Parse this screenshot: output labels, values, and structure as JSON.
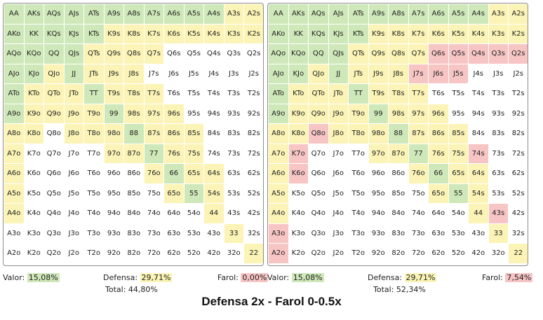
{
  "colors": {
    "valor": "#cfe8b9",
    "defensa": "#fbf4b6",
    "farol": "#f8c5c5",
    "none": "#ffffff"
  },
  "rows": [
    [
      "AA",
      "AKs",
      "AQs",
      "AJs",
      "ATs",
      "A9s",
      "A8s",
      "A7s",
      "A6s",
      "A5s",
      "A4s",
      "A3s",
      "A2s"
    ],
    [
      "AKo",
      "KK",
      "KQs",
      "KJs",
      "KTs",
      "K9s",
      "K8s",
      "K7s",
      "K6s",
      "K5s",
      "K4s",
      "K3s",
      "K2s"
    ],
    [
      "AQo",
      "KQo",
      "QQ",
      "QJs",
      "QTs",
      "Q9s",
      "Q8s",
      "Q7s",
      "Q6s",
      "Q5s",
      "Q4s",
      "Q3s",
      "Q2s"
    ],
    [
      "AJo",
      "KJo",
      "QJo",
      "JJ",
      "JTs",
      "J9s",
      "J8s",
      "J7s",
      "J6s",
      "J5s",
      "J4s",
      "J3s",
      "J2s"
    ],
    [
      "ATo",
      "KTo",
      "QTo",
      "JTo",
      "TT",
      "T9s",
      "T8s",
      "T7s",
      "T6s",
      "T5s",
      "T4s",
      "T3s",
      "T2s"
    ],
    [
      "A9o",
      "K9o",
      "Q9o",
      "J9o",
      "T9o",
      "99",
      "98s",
      "97s",
      "96s",
      "95s",
      "94s",
      "93s",
      "92s"
    ],
    [
      "A8o",
      "K8o",
      "Q8o",
      "J8o",
      "T8o",
      "98o",
      "88",
      "87s",
      "86s",
      "85s",
      "84s",
      "83s",
      "82s"
    ],
    [
      "A7o",
      "K7o",
      "Q7o",
      "J7o",
      "T7o",
      "97o",
      "87o",
      "77",
      "76s",
      "75s",
      "74s",
      "73s",
      "72s"
    ],
    [
      "A6o",
      "K6o",
      "Q6o",
      "J6o",
      "T6o",
      "96o",
      "86o",
      "76o",
      "66",
      "65s",
      "64s",
      "63s",
      "62s"
    ],
    [
      "A5o",
      "K5o",
      "Q5o",
      "J5o",
      "T5o",
      "95o",
      "85o",
      "75o",
      "65o",
      "55",
      "54s",
      "53s",
      "52s"
    ],
    [
      "A4o",
      "K4o",
      "Q4o",
      "J4o",
      "T4o",
      "94o",
      "84o",
      "74o",
      "64o",
      "54o",
      "44",
      "43s",
      "42s"
    ],
    [
      "A3o",
      "K3o",
      "Q3o",
      "J3o",
      "T3o",
      "93o",
      "83o",
      "73o",
      "63o",
      "53o",
      "43o",
      "33",
      "32s"
    ],
    [
      "A2o",
      "K2o",
      "Q2o",
      "J2o",
      "T2o",
      "92o",
      "82o",
      "72o",
      "62o",
      "52o",
      "42o",
      "32o",
      "22"
    ]
  ],
  "panels": [
    {
      "colors": [
        "VVVVVVVVVVVDD",
        "VVVVVDDDDDDDD",
        "VVVVDDDDNNNNN",
        "VVDVDDDNNNNNN",
        "VDDDVDDDNNNNN",
        "VDDDDVDDDNNNN",
        "DDNDDDVDDDNNN",
        "DNNNNDDVDDNNN",
        "DNNNNNNDVDDNN",
        "DNNNNNNNDVDNN",
        "DNNNNNNNNNDNN",
        "NNNNNNNNNNNDN",
        "NNNNNNNNNNNND"
      ],
      "stats": {
        "valor_label": "Valor:",
        "valor_value": "15,08%",
        "defensa_label": "Defensa:",
        "defensa_value": "29,71%",
        "farol_label": "Farol:",
        "farol_value": "0,00%",
        "total_label": "Total:",
        "total_value": "44,80%"
      }
    },
    {
      "colors": [
        "VVVVVVVVVVVDD",
        "VVVVVDDDDDDDD",
        "VVVVDDDDFFFFF",
        "VVDVDDDFFFNNN",
        "VDDDVDDDNNNNN",
        "VDDDDVDDDNNNN",
        "DDFDDDVDDDNNN",
        "DFNNNDDVDDFNN",
        "DFNNNNNDVDDNN",
        "DNNNNNNNDVDNN",
        "DNNNNNNNNNDFN",
        "FNNNNNNNNNNDN",
        "FNNNNNNNNNNND"
      ],
      "stats": {
        "valor_label": "Valor:",
        "valor_value": "15,08%",
        "defensa_label": "Defensa:",
        "defensa_value": "29,71%",
        "farol_label": "Farol:",
        "farol_value": "7,54%",
        "total_label": "Total:",
        "total_value": "52,34%"
      }
    }
  ],
  "title": "Defensa 2x - Farol 0-0.5x"
}
